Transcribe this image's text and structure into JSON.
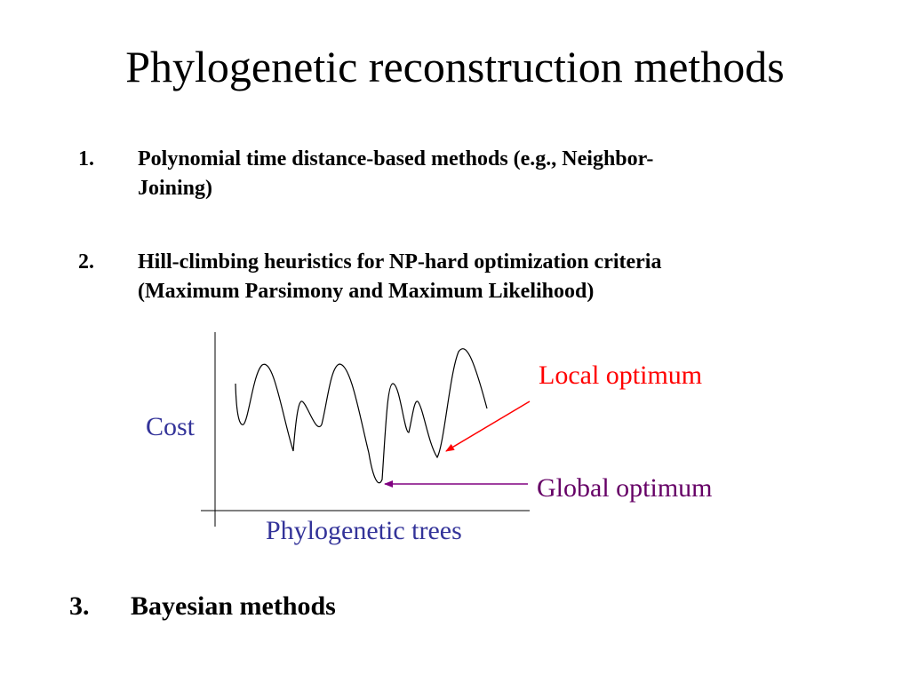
{
  "title": "Phylogenetic reconstruction methods",
  "items": [
    {
      "number": "1.",
      "lines": [
        "Polynomial time distance-based methods (e.g., Neighbor-",
        "Joining)"
      ]
    },
    {
      "number": "2.",
      "lines": [
        "Hill-climbing heuristics for NP-hard optimization criteria",
        "(Maximum Parsimony and Maximum Likelihood)"
      ]
    },
    {
      "number": "3.",
      "lines": [
        "Bayesian methods"
      ]
    }
  ],
  "diagram": {
    "y_label": "Cost",
    "x_label": "Phylogenetic trees",
    "local_label": "Local optimum",
    "global_label": "Global optimum",
    "colors": {
      "axis_label": "#333399",
      "local": "#ff0000",
      "local_arrow": "#ff0000",
      "global": "#660066",
      "global_arrow": "#800080",
      "curve": "#000000"
    }
  }
}
